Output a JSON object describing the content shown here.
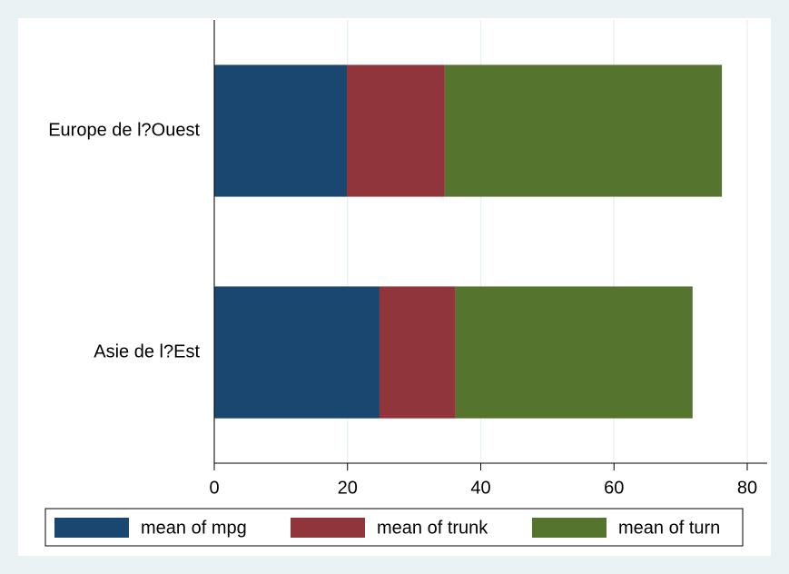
{
  "chart_data": {
    "type": "stacked-bar-horizontal",
    "categories": [
      "Europe de l?Ouest",
      "Asie de l?Est"
    ],
    "series": [
      {
        "name": "mean of mpg",
        "color": "#1a476f",
        "values": [
          19.9,
          24.8
        ]
      },
      {
        "name": "mean of trunk",
        "color": "#90353b",
        "values": [
          14.7,
          11.4
        ]
      },
      {
        "name": "mean of turn",
        "color": "#55752f",
        "values": [
          41.6,
          35.6
        ]
      }
    ],
    "xlim": [
      0,
      83
    ],
    "xticks": [
      0,
      20,
      40,
      60,
      80
    ],
    "grid": true,
    "legend": "bottom"
  }
}
